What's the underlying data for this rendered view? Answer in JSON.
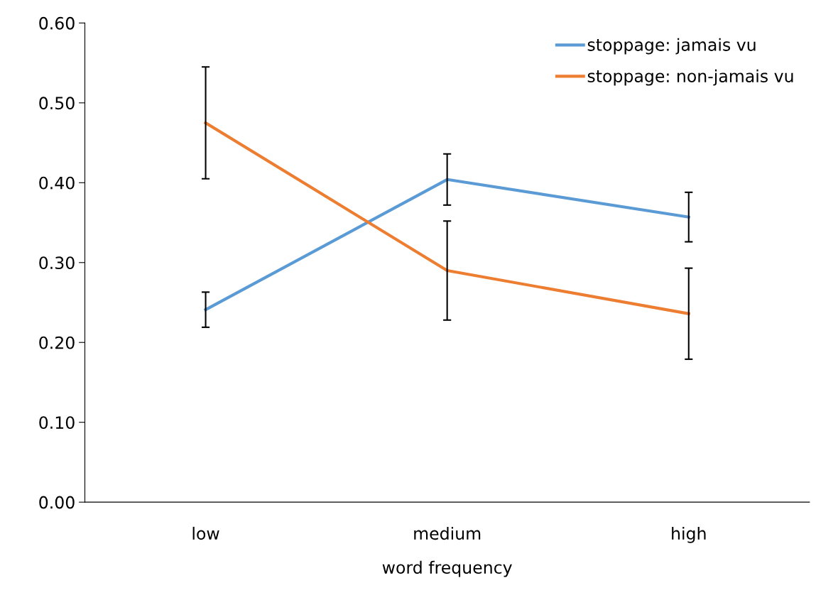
{
  "chart_data": {
    "type": "line",
    "xlabel": "word frequency",
    "categories": [
      "low",
      "medium",
      "high"
    ],
    "series": [
      {
        "name": "stoppage: jamais vu",
        "color": "#5b9bd5",
        "values": [
          0.241,
          0.404,
          0.357
        ],
        "errors": [
          0.022,
          0.032,
          0.031
        ]
      },
      {
        "name": "stoppage: non-jamais vu",
        "color": "#ed7d31",
        "values": [
          0.475,
          0.29,
          0.236
        ],
        "errors": [
          0.07,
          0.062,
          0.057
        ]
      }
    ],
    "ylim": [
      0,
      0.6
    ],
    "yticks": [
      {
        "value": 0,
        "label": "0.00"
      },
      {
        "value": 0.1,
        "label": "0.10"
      },
      {
        "value": 0.2,
        "label": "0.20"
      },
      {
        "value": 0.3,
        "label": "0.30"
      },
      {
        "value": 0.4,
        "label": "0.40"
      },
      {
        "value": 0.5,
        "label": "0.50"
      },
      {
        "value": 0.6,
        "label": "0.60"
      }
    ],
    "grid": false,
    "legend": "top right",
    "marker": "none",
    "line_style": "solid"
  }
}
